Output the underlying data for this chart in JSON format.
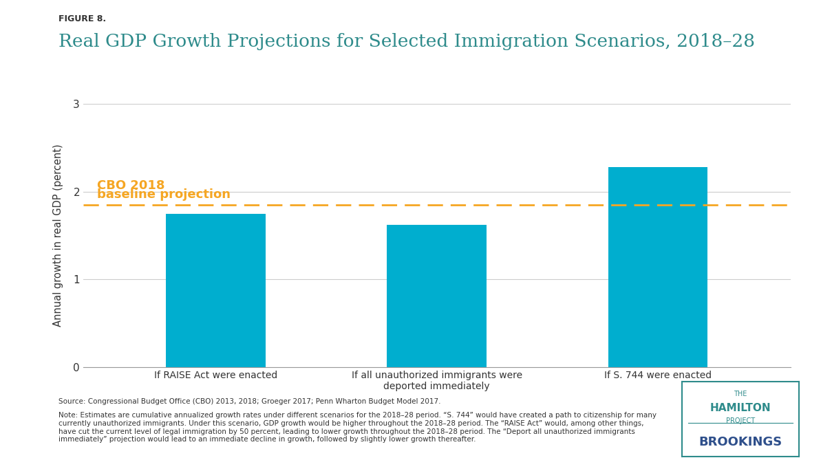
{
  "figure_label": "FIGURE 8.",
  "title": "Real GDP Growth Projections for Selected Immigration Scenarios, 2018–28",
  "categories": [
    "If RAISE Act were enacted",
    "If all unauthorized immigrants were\ndeported immediately",
    "If S. 744 were enacted"
  ],
  "values": [
    1.75,
    1.62,
    2.28
  ],
  "bar_color": "#00AECF",
  "baseline_value": 1.85,
  "baseline_label_line1": "CBO 2018",
  "baseline_label_line2": "baseline projection",
  "baseline_color": "#F5A623",
  "ylabel": "Annual growth in real GDP (percent)",
  "ylim": [
    0,
    3
  ],
  "yticks": [
    0,
    1,
    2,
    3
  ],
  "grid_color": "#cccccc",
  "title_color": "#2E8B8B",
  "figure_label_color": "#333333",
  "background_color": "#ffffff",
  "source_text": "Source: Congressional Budget Office (CBO) 2013, 2018; Groeger 2017; Penn Wharton Budget Model 2017.",
  "note_text": "Note: Estimates are cumulative annualized growth rates under different scenarios for the 2018–28 period. “S. 744” would have created a path to citizenship for many\ncurrently unauthorized immigrants. Under this scenario, GDP growth would be higher throughout the 2018–28 period. The “RAISE Act” would, among other things,\nhave cut the current level of legal immigration by 50 percent, leading to lower growth throughout the 2018–28 period. The “Deport all unauthorized immigrants\nimmediately” projection would lead to an immediate decline in growth, followed by slightly lower growth thereafter.",
  "hamilton_text": "THE\nHAMILTON\nPROJECT",
  "brookings_text": "BROOKINGS",
  "hamilton_color": "#2E8B8B",
  "brookings_color": "#2E4F8B"
}
